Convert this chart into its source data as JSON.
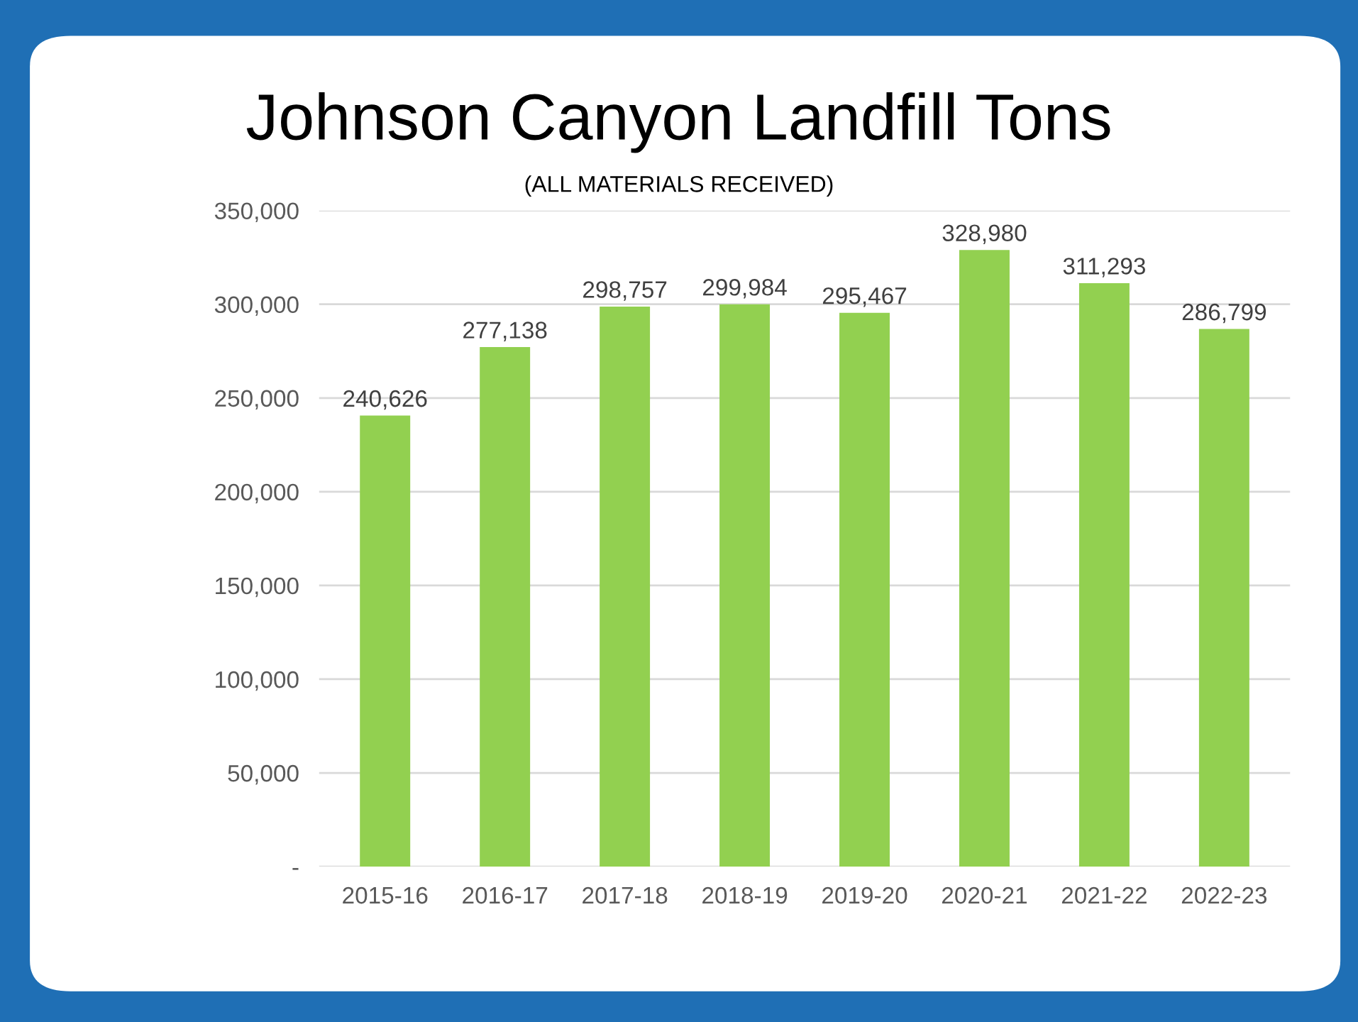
{
  "chart_data": {
    "type": "bar",
    "title": "Johnson Canyon Landfill Tons",
    "subtitle": "(ALL MATERIALS RECEIVED)",
    "categories": [
      "2015-16",
      "2016-17",
      "2017-18",
      "2018-19",
      "2019-20",
      "2020-21",
      "2021-22",
      "2022-23"
    ],
    "values": [
      240626,
      277138,
      298757,
      299984,
      295467,
      328980,
      311293,
      286799
    ],
    "color": "#92d050",
    "value_labels": [
      "240,626",
      "277,138",
      "298,757",
      "299,984",
      "295,467",
      "328,980",
      "311,293",
      "286,799"
    ],
    "ylim": [
      0,
      350000
    ],
    "yticks": [
      {
        "value": 0,
        "label": "-"
      },
      {
        "value": 50000,
        "label": "50,000"
      },
      {
        "value": 100000,
        "label": "100,000"
      },
      {
        "value": 150000,
        "label": "150,000"
      },
      {
        "value": 200000,
        "label": "200,000"
      },
      {
        "value": 250000,
        "label": "250,000"
      },
      {
        "value": 300000,
        "label": "300,000"
      },
      {
        "value": 350000,
        "label": "350,000"
      }
    ],
    "grid": "y",
    "legend": false
  }
}
